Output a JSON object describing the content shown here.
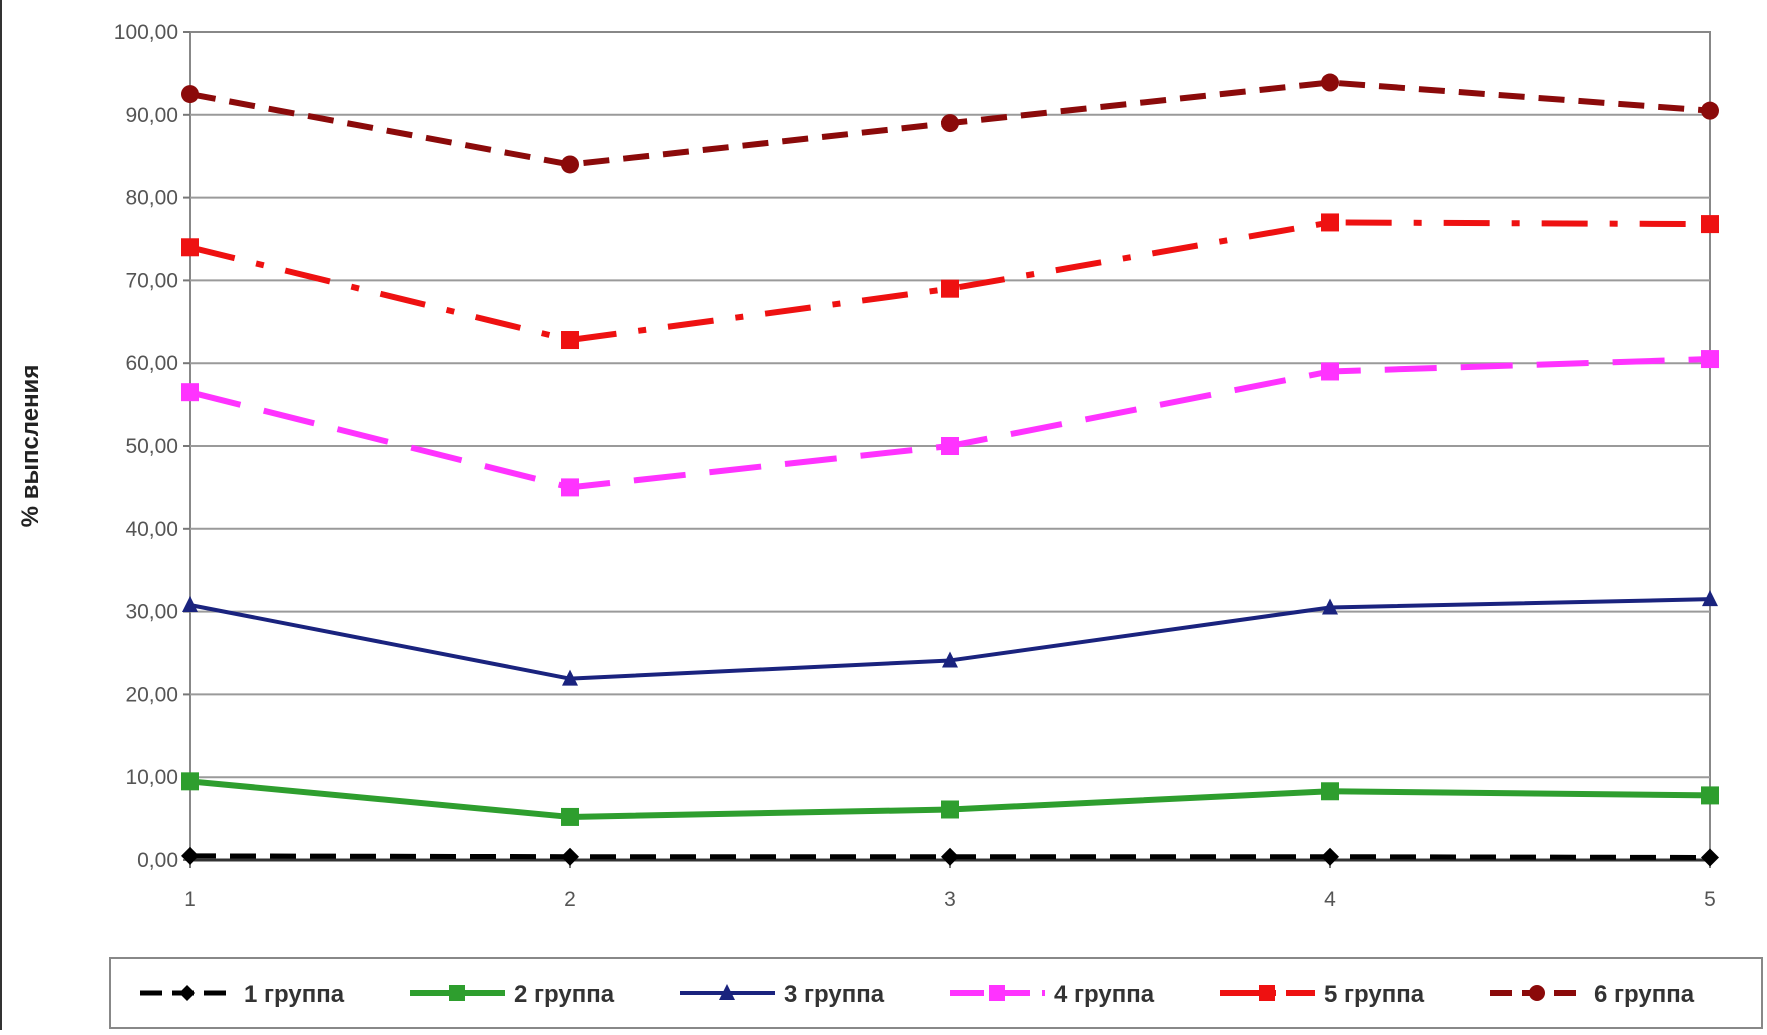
{
  "chart_data": {
    "type": "line",
    "title": "",
    "xlabel": "",
    "ylabel": "% выпсления",
    "x": [
      1,
      2,
      3,
      4,
      5
    ],
    "x_tick_labels": [
      "1",
      "2",
      "3",
      "4",
      "5"
    ],
    "ylim": [
      0,
      100
    ],
    "y_tick_labels": [
      "0,00",
      "10,00",
      "20,00",
      "30,00",
      "40,00",
      "50,00",
      "60,00",
      "70,00",
      "80,00",
      "90,00",
      "100,00"
    ],
    "grid": true,
    "legend_position": "bottom",
    "series": [
      {
        "name": "1 группа",
        "values": [
          0.5,
          0.4,
          0.4,
          0.4,
          0.3
        ],
        "color": "#000000",
        "dash": "dashed",
        "marker": "diamond"
      },
      {
        "name": "2 группа",
        "values": [
          9.5,
          5.2,
          6.1,
          8.3,
          7.8
        ],
        "color": "#2e9e2e",
        "dash": "solid",
        "marker": "square"
      },
      {
        "name": "3 группа",
        "values": [
          30.8,
          21.9,
          24.1,
          30.5,
          31.5
        ],
        "color": "#1a237e",
        "dash": "solid",
        "marker": "triangle"
      },
      {
        "name": "4 группа",
        "values": [
          56.5,
          45.0,
          50.0,
          59.0,
          60.5
        ],
        "color": "#ff33ff",
        "dash": "longdash",
        "marker": "square"
      },
      {
        "name": "5 группа",
        "values": [
          74.0,
          62.8,
          69.0,
          77.0,
          76.8
        ],
        "color": "#ee1111",
        "dash": "dashdot",
        "marker": "square"
      },
      {
        "name": "6 группа",
        "values": [
          92.5,
          84.0,
          89.0,
          93.9,
          90.5
        ],
        "color": "#8b0a0a",
        "dash": "dashed",
        "marker": "circle"
      }
    ]
  }
}
